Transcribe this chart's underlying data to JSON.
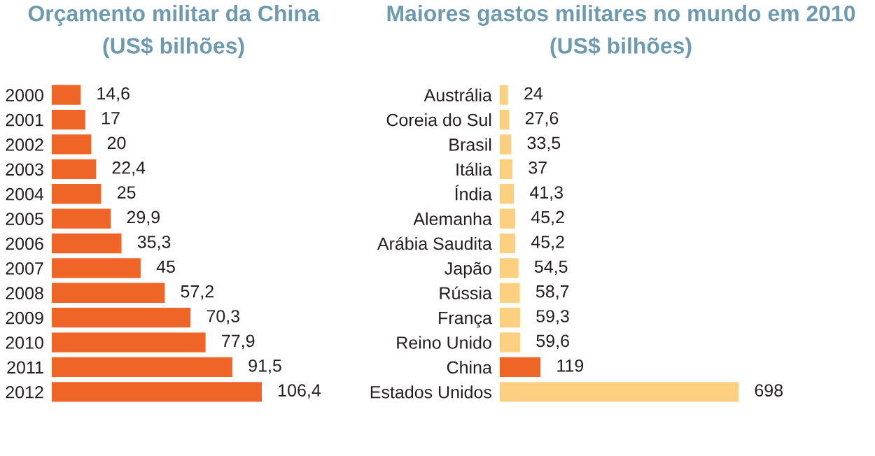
{
  "chart_data": [
    {
      "type": "bar",
      "orientation": "horizontal",
      "title": "Orçamento militar da China",
      "subtitle": "(US$ bilhões)",
      "categories": [
        "2000",
        "2001",
        "2002",
        "2003",
        "2004",
        "2005",
        "2006",
        "2007",
        "2008",
        "2009",
        "2010",
        "2011",
        "2012"
      ],
      "values": [
        14.6,
        17,
        20,
        22.4,
        25,
        29.9,
        35.3,
        45,
        57.2,
        70.3,
        77.9,
        91.5,
        106.4
      ],
      "value_labels": [
        "14,6",
        "17",
        "20",
        "22,4",
        "25",
        "29,9",
        "35,3",
        "45",
        "57,2",
        "70,3",
        "77,9",
        "91,5",
        "106,4"
      ],
      "color": "#ef6527"
    },
    {
      "type": "bar",
      "orientation": "horizontal",
      "title": "Maiores gastos militares no mundo em 2010",
      "subtitle": "(US$ bilhões)",
      "categories": [
        "Austrália",
        "Coreia do Sul",
        "Brasil",
        "Itália",
        "Índia",
        "Alemanha",
        "Arábia Saudita",
        "Japão",
        "Rússia",
        "França",
        "Reino Unido",
        "China",
        "Estados Unidos"
      ],
      "values": [
        24,
        27.6,
        33.5,
        37,
        41.3,
        45.2,
        45.2,
        54.5,
        58.7,
        59.3,
        59.6,
        119,
        698
      ],
      "value_labels": [
        "24",
        "27,6",
        "33,5",
        "37",
        "41,3",
        "45,2",
        "45,2",
        "54,5",
        "58,7",
        "59,3",
        "59,6",
        "119",
        "698"
      ],
      "colors": [
        "#fdd081",
        "#fdd081",
        "#fdd081",
        "#fdd081",
        "#fdd081",
        "#fdd081",
        "#fdd081",
        "#fdd081",
        "#fdd081",
        "#fdd081",
        "#fdd081",
        "#ef6527",
        "#fdd081"
      ]
    }
  ]
}
